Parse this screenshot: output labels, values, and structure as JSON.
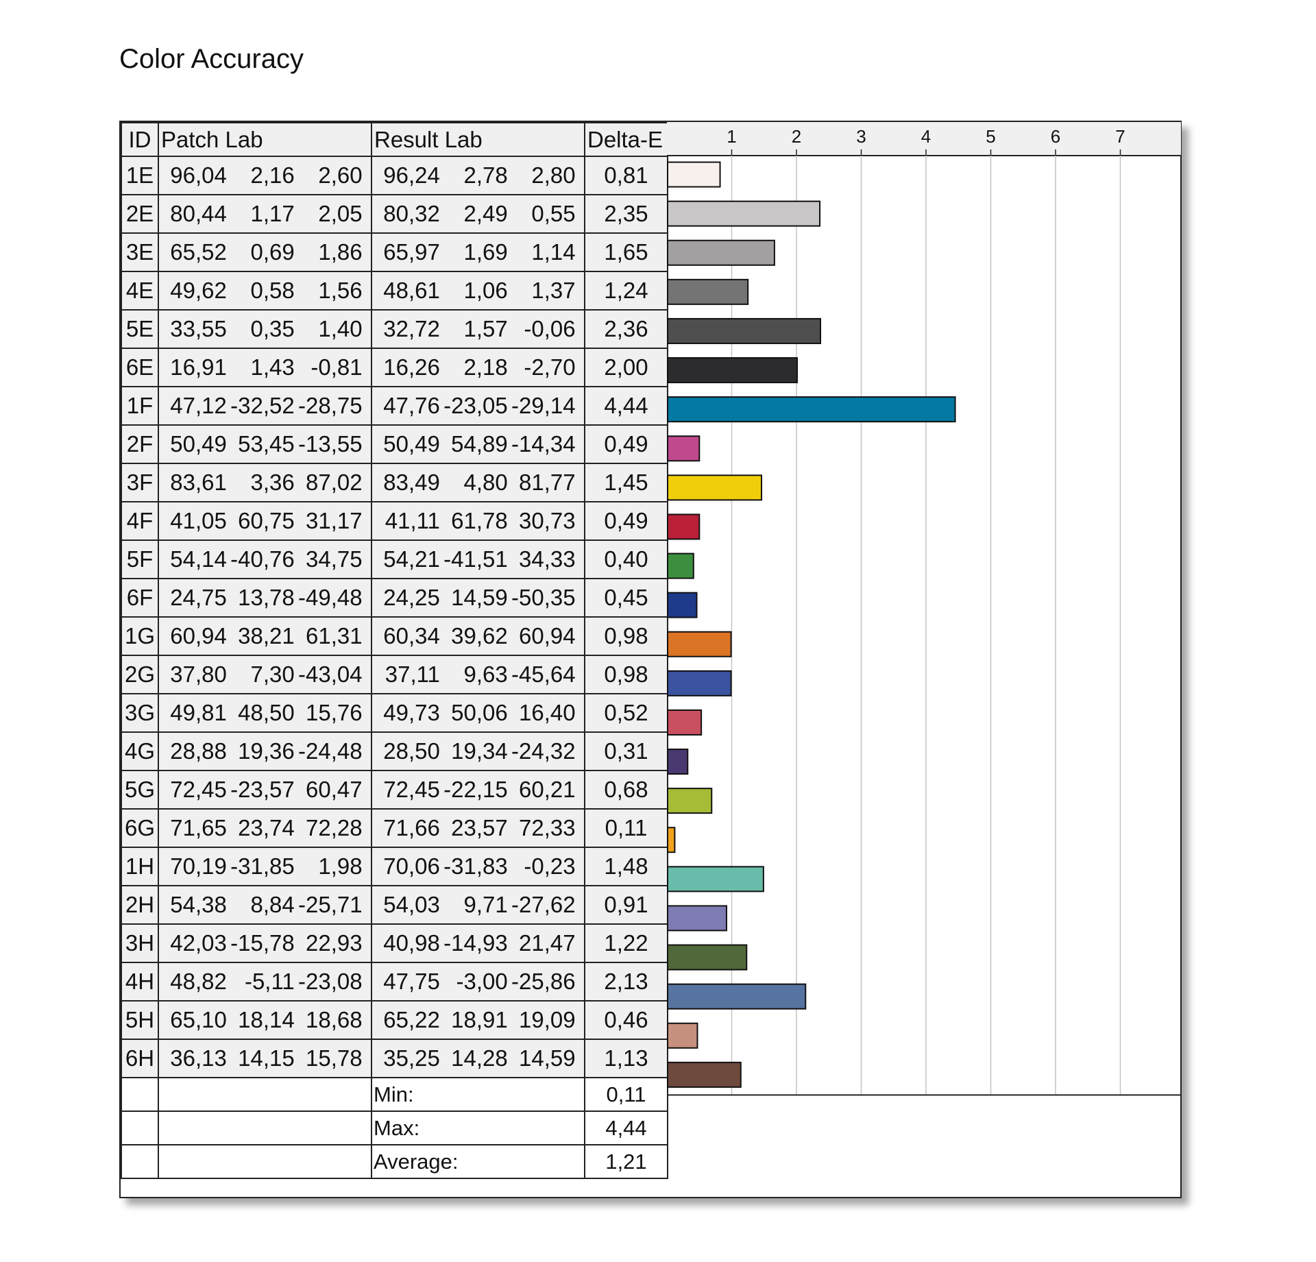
{
  "title": "Color Accuracy",
  "headers": {
    "id": "ID",
    "patch": "Patch Lab",
    "result": "Result Lab",
    "delta": "Delta-E"
  },
  "rows": [
    {
      "id": "1E",
      "patch": [
        "96,04",
        "2,16",
        "2,60"
      ],
      "result": [
        "96,24",
        "2,78",
        "2,80"
      ],
      "de": "0,81"
    },
    {
      "id": "2E",
      "patch": [
        "80,44",
        "1,17",
        "2,05"
      ],
      "result": [
        "80,32",
        "2,49",
        "0,55"
      ],
      "de": "2,35"
    },
    {
      "id": "3E",
      "patch": [
        "65,52",
        "0,69",
        "1,86"
      ],
      "result": [
        "65,97",
        "1,69",
        "1,14"
      ],
      "de": "1,65"
    },
    {
      "id": "4E",
      "patch": [
        "49,62",
        "0,58",
        "1,56"
      ],
      "result": [
        "48,61",
        "1,06",
        "1,37"
      ],
      "de": "1,24"
    },
    {
      "id": "5E",
      "patch": [
        "33,55",
        "0,35",
        "1,40"
      ],
      "result": [
        "32,72",
        "1,57",
        "-0,06"
      ],
      "de": "2,36"
    },
    {
      "id": "6E",
      "patch": [
        "16,91",
        "1,43",
        "-0,81"
      ],
      "result": [
        "16,26",
        "2,18",
        "-2,70"
      ],
      "de": "2,00"
    },
    {
      "id": "1F",
      "patch": [
        "47,12",
        "-32,52",
        "-28,75"
      ],
      "result": [
        "47,76",
        "-23,05",
        "-29,14"
      ],
      "de": "4,44"
    },
    {
      "id": "2F",
      "patch": [
        "50,49",
        "53,45",
        "-13,55"
      ],
      "result": [
        "50,49",
        "54,89",
        "-14,34"
      ],
      "de": "0,49"
    },
    {
      "id": "3F",
      "patch": [
        "83,61",
        "3,36",
        "87,02"
      ],
      "result": [
        "83,49",
        "4,80",
        "81,77"
      ],
      "de": "1,45"
    },
    {
      "id": "4F",
      "patch": [
        "41,05",
        "60,75",
        "31,17"
      ],
      "result": [
        "41,11",
        "61,78",
        "30,73"
      ],
      "de": "0,49"
    },
    {
      "id": "5F",
      "patch": [
        "54,14",
        "-40,76",
        "34,75"
      ],
      "result": [
        "54,21",
        "-41,51",
        "34,33"
      ],
      "de": "0,40"
    },
    {
      "id": "6F",
      "patch": [
        "24,75",
        "13,78",
        "-49,48"
      ],
      "result": [
        "24,25",
        "14,59",
        "-50,35"
      ],
      "de": "0,45"
    },
    {
      "id": "1G",
      "patch": [
        "60,94",
        "38,21",
        "61,31"
      ],
      "result": [
        "60,34",
        "39,62",
        "60,94"
      ],
      "de": "0,98"
    },
    {
      "id": "2G",
      "patch": [
        "37,80",
        "7,30",
        "-43,04"
      ],
      "result": [
        "37,11",
        "9,63",
        "-45,64"
      ],
      "de": "0,98"
    },
    {
      "id": "3G",
      "patch": [
        "49,81",
        "48,50",
        "15,76"
      ],
      "result": [
        "49,73",
        "50,06",
        "16,40"
      ],
      "de": "0,52"
    },
    {
      "id": "4G",
      "patch": [
        "28,88",
        "19,36",
        "-24,48"
      ],
      "result": [
        "28,50",
        "19,34",
        "-24,32"
      ],
      "de": "0,31"
    },
    {
      "id": "5G",
      "patch": [
        "72,45",
        "-23,57",
        "60,47"
      ],
      "result": [
        "72,45",
        "-22,15",
        "60,21"
      ],
      "de": "0,68"
    },
    {
      "id": "6G",
      "patch": [
        "71,65",
        "23,74",
        "72,28"
      ],
      "result": [
        "71,66",
        "23,57",
        "72,33"
      ],
      "de": "0,11"
    },
    {
      "id": "1H",
      "patch": [
        "70,19",
        "-31,85",
        "1,98"
      ],
      "result": [
        "70,06",
        "-31,83",
        "-0,23"
      ],
      "de": "1,48"
    },
    {
      "id": "2H",
      "patch": [
        "54,38",
        "8,84",
        "-25,71"
      ],
      "result": [
        "54,03",
        "9,71",
        "-27,62"
      ],
      "de": "0,91"
    },
    {
      "id": "3H",
      "patch": [
        "42,03",
        "-15,78",
        "22,93"
      ],
      "result": [
        "40,98",
        "-14,93",
        "21,47"
      ],
      "de": "1,22"
    },
    {
      "id": "4H",
      "patch": [
        "48,82",
        "-5,11",
        "-23,08"
      ],
      "result": [
        "47,75",
        "-3,00",
        "-25,86"
      ],
      "de": "2,13"
    },
    {
      "id": "5H",
      "patch": [
        "65,10",
        "18,14",
        "18,68"
      ],
      "result": [
        "65,22",
        "18,91",
        "19,09"
      ],
      "de": "0,46"
    },
    {
      "id": "6H",
      "patch": [
        "36,13",
        "14,15",
        "15,78"
      ],
      "result": [
        "35,25",
        "14,28",
        "14,59"
      ],
      "de": "1,13"
    }
  ],
  "summary": [
    {
      "label": "Min:",
      "value": "0,11"
    },
    {
      "label": "Max:",
      "value": "4,44"
    },
    {
      "label": "Average:",
      "value": "1,21"
    }
  ],
  "chart_data": {
    "type": "bar",
    "orientation": "horizontal",
    "categories": [
      "1E",
      "2E",
      "3E",
      "4E",
      "5E",
      "6E",
      "1F",
      "2F",
      "3F",
      "4F",
      "5F",
      "6F",
      "1G",
      "2G",
      "3G",
      "4G",
      "5G",
      "6G",
      "1H",
      "2H",
      "3H",
      "4H",
      "5H",
      "6H"
    ],
    "values": [
      0.81,
      2.35,
      1.65,
      1.24,
      2.36,
      2.0,
      4.44,
      0.49,
      1.45,
      0.49,
      0.4,
      0.45,
      0.98,
      0.98,
      0.52,
      0.31,
      0.68,
      0.11,
      1.48,
      0.91,
      1.22,
      2.13,
      0.46,
      1.13
    ],
    "colors": [
      "#f8f0ec",
      "#c9c6c8",
      "#a3a0a1",
      "#747474",
      "#4e4e4f",
      "#2c2b2e",
      "#0379a3",
      "#c0498e",
      "#f1ce0c",
      "#bb2039",
      "#3d8f3f",
      "#1f3a8a",
      "#dc7426",
      "#3b53a0",
      "#c8505f",
      "#4a3970",
      "#a6bc36",
      "#f0a21d",
      "#68bca9",
      "#7f7bb3",
      "#51693a",
      "#57739f",
      "#c6907e",
      "#6d4a3d"
    ],
    "xticks": [
      1,
      2,
      3,
      4,
      5,
      6,
      7
    ],
    "xlim": [
      0,
      8
    ],
    "grid": true,
    "title": "",
    "xlabel": "",
    "ylabel": ""
  }
}
